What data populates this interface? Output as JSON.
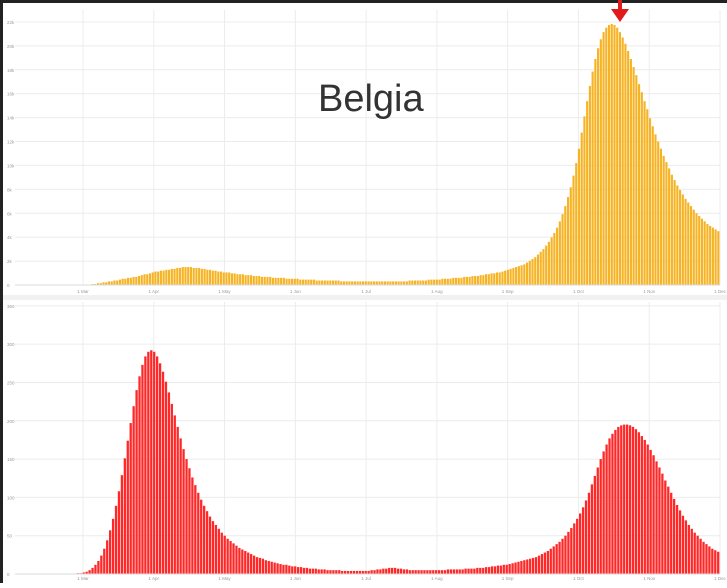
{
  "overlay": {
    "label": "Belgia",
    "marker": "red-down-arrow-icon"
  },
  "colors": {
    "cases": "#f6b324",
    "deaths": "#ff2828",
    "grid": "#ececec",
    "frame": "#222222",
    "tick": "#9a9a9a",
    "arrow": "#e11b1b"
  },
  "chart_data": [
    {
      "type": "bar",
      "series": [
        {
          "name": "",
          "color": "#f6b324",
          "values": [
            0,
            0,
            0,
            0,
            0,
            0,
            0,
            0,
            0,
            0,
            0,
            0,
            0,
            0,
            0,
            0,
            0,
            0,
            0,
            0,
            0,
            0,
            0,
            0,
            0,
            0,
            0,
            0,
            1,
            1,
            2,
            2,
            3,
            3,
            4,
            4,
            5,
            5,
            6,
            7,
            7,
            8,
            8,
            9,
            9,
            10,
            11,
            12,
            12,
            13,
            14,
            15,
            15,
            16,
            16,
            17,
            17,
            18,
            18,
            19,
            19,
            20,
            20,
            20,
            20,
            19,
            19,
            19,
            18,
            18,
            17,
            17,
            16,
            16,
            15,
            15,
            14,
            14,
            14,
            13,
            13,
            12,
            12,
            12,
            11,
            11,
            11,
            10,
            10,
            10,
            9,
            9,
            9,
            9,
            8,
            8,
            8,
            8,
            8,
            7,
            7,
            7,
            7,
            7,
            6,
            6,
            6,
            6,
            6,
            6,
            5,
            5,
            5,
            5,
            5,
            5,
            5,
            5,
            5,
            4,
            4,
            4,
            4,
            4,
            4,
            4,
            4,
            4,
            4,
            4,
            4,
            4,
            4,
            4,
            4,
            4,
            4,
            4,
            4,
            4,
            4,
            4,
            4,
            4,
            5,
            5,
            5,
            5,
            5,
            5,
            5,
            6,
            6,
            6,
            6,
            6,
            7,
            7,
            7,
            7,
            8,
            8,
            8,
            8,
            9,
            9,
            9,
            10,
            10,
            10,
            11,
            11,
            12,
            12,
            13,
            13,
            14,
            14,
            15,
            16,
            17,
            18,
            19,
            20,
            21,
            22,
            23,
            25,
            27,
            29,
            31,
            34,
            37,
            40,
            44,
            48,
            53,
            58,
            64,
            71,
            79,
            88,
            98,
            109,
            122,
            136,
            152,
            170,
            188,
            205,
            222,
            238,
            252,
            264,
            274,
            282,
            287,
            290,
            291,
            290,
            287,
            282,
            276,
            269,
            261,
            252,
            243,
            234,
            224,
            215,
            205,
            196,
            186,
            177,
            168,
            160,
            152,
            144,
            137,
            130,
            123,
            117,
            111,
            106,
            101,
            96,
            92,
            88,
            84,
            80,
            77,
            74,
            71,
            68,
            66,
            64,
            62,
            60
          ]
        }
      ],
      "x_ticks": [
        "1 Mar",
        "1 Apr",
        "1 May",
        "1 Jun",
        "1 Jul",
        "1 Aug",
        "1 Sep",
        "1 Oct",
        "1 Nov",
        "1 Dec"
      ],
      "y_ticks": [
        "0",
        "2k",
        "4k",
        "6k",
        "8k",
        "10k",
        "12k",
        "14k",
        "16k",
        "18k",
        "20k",
        "22k"
      ],
      "ylim": [
        0,
        23000
      ],
      "scale": 75,
      "grid": true
    },
    {
      "type": "bar",
      "series": [
        {
          "name": "",
          "color": "#ff2828",
          "values": [
            0,
            0,
            0,
            0,
            0,
            0,
            0,
            0,
            0,
            0,
            0,
            0,
            0,
            0,
            0,
            0,
            0,
            0,
            0,
            0,
            0,
            1,
            1,
            2,
            3,
            5,
            8,
            12,
            17,
            24,
            33,
            44,
            57,
            72,
            89,
            108,
            129,
            151,
            174,
            197,
            219,
            240,
            258,
            273,
            284,
            290,
            292,
            290,
            284,
            275,
            264,
            251,
            237,
            222,
            207,
            192,
            177,
            163,
            150,
            138,
            126,
            116,
            106,
            97,
            89,
            82,
            75,
            69,
            64,
            59,
            54,
            50,
            46,
            43,
            40,
            37,
            34,
            32,
            30,
            28,
            26,
            24,
            22,
            21,
            20,
            18,
            17,
            16,
            15,
            14,
            13,
            12,
            12,
            11,
            10,
            10,
            9,
            9,
            8,
            8,
            7,
            7,
            7,
            6,
            6,
            6,
            5,
            5,
            5,
            5,
            5,
            4,
            4,
            4,
            4,
            4,
            4,
            4,
            4,
            4,
            4,
            5,
            5,
            6,
            6,
            7,
            7,
            8,
            8,
            8,
            7,
            7,
            6,
            6,
            5,
            5,
            5,
            5,
            5,
            5,
            5,
            5,
            5,
            5,
            5,
            5,
            5,
            6,
            6,
            6,
            6,
            6,
            6,
            7,
            7,
            7,
            7,
            8,
            8,
            8,
            9,
            9,
            10,
            10,
            11,
            11,
            12,
            12,
            13,
            14,
            15,
            16,
            17,
            18,
            19,
            20,
            21,
            22,
            24,
            26,
            28,
            30,
            33,
            36,
            39,
            42,
            46,
            50,
            55,
            60,
            66,
            72,
            79,
            87,
            96,
            106,
            117,
            128,
            139,
            150,
            160,
            169,
            177,
            183,
            188,
            192,
            194,
            195,
            195,
            194,
            192,
            189,
            185,
            180,
            175,
            169,
            162,
            155,
            147,
            139,
            131,
            122,
            114,
            106,
            98,
            90,
            83,
            76,
            70,
            64,
            59,
            54,
            50,
            46,
            42,
            39,
            36,
            33,
            31,
            29
          ]
        }
      ],
      "x_ticks": [
        "1 Mar",
        "1 Apr",
        "1 May",
        "1 Jun",
        "1 Jul",
        "1 Aug",
        "1 Sep",
        "1 Oct",
        "1 Nov",
        "1 Dec"
      ],
      "y_ticks": [
        "0",
        "50",
        "100",
        "150",
        "200",
        "250",
        "300",
        "350"
      ],
      "ylim": [
        0,
        355
      ],
      "grid": true
    }
  ]
}
